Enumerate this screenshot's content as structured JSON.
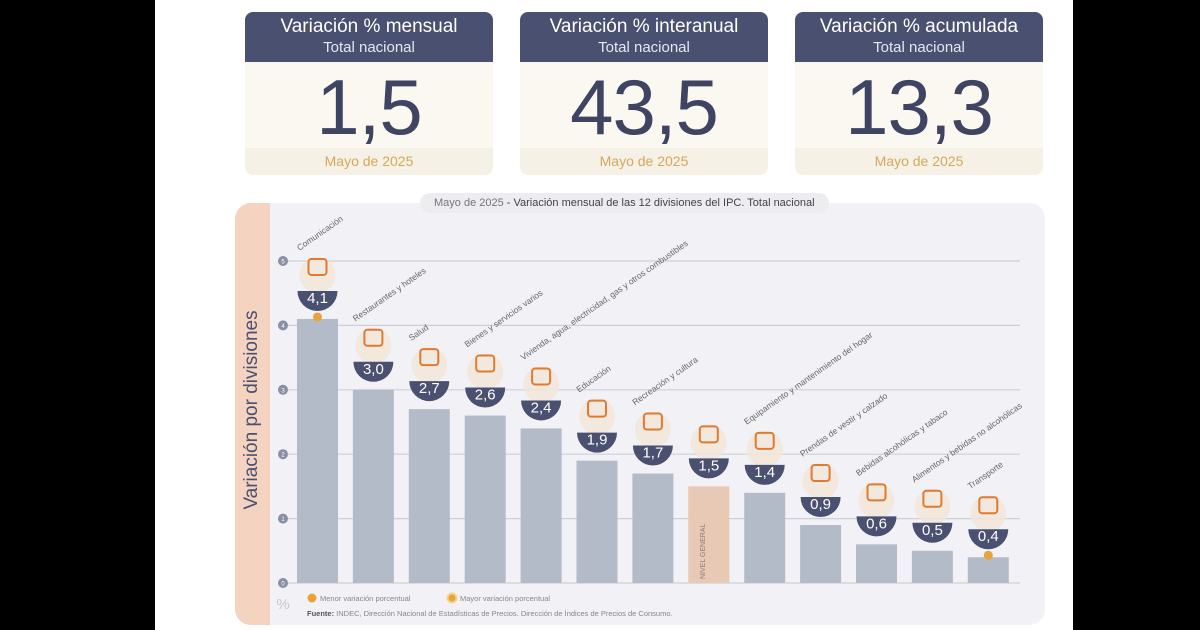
{
  "cards": [
    {
      "title": "Variación % mensual",
      "subtitle": "Total nacional",
      "value": "1,5",
      "period": "Mayo de 2025"
    },
    {
      "title": "Variación % interanual",
      "subtitle": "Total nacional",
      "value": "43,5",
      "period": "Mayo de 2025"
    },
    {
      "title": "Variación % acumulada",
      "subtitle": "Total nacional",
      "value": "13,3",
      "period": "Mayo de 2025"
    }
  ],
  "colors": {
    "navy": "#4a5070",
    "bar": "#b3bbc8",
    "general": "#e8c9b5",
    "accent": "#e8a33a",
    "orange": "#e07a2e"
  },
  "chart_data": {
    "type": "bar",
    "title_period": "Mayo de 2025",
    "title": " - Variación mensual de las 12 divisiones del IPC. Total nacional",
    "ylabel": "Variación por divisiones",
    "unit": "%",
    "ylim": [
      0,
      5
    ],
    "yticks": [
      "0",
      "1",
      "2",
      "3",
      "4",
      "5"
    ],
    "categories": [
      "Comunicación",
      "Restaurantes y hoteles",
      "Salud",
      "Bienes y servicios varios",
      "Vivienda, agua, electricidad, gas y otros combustibles",
      "Educación",
      "Recreación y cultura",
      "NIVEL GENERAL",
      "Equipamiento y mantenimiento del hogar",
      "Prendas de vestir y calzado",
      "Bebidas alcohólicas y tabaco",
      "Alimentos y bebidas no alcohólicas",
      "Transporte"
    ],
    "values": [
      4.1,
      3.0,
      2.7,
      2.6,
      2.4,
      1.9,
      1.7,
      1.5,
      1.4,
      0.9,
      0.6,
      0.5,
      0.4
    ],
    "value_labels": [
      "4,1",
      "3,0",
      "2,7",
      "2,6",
      "2,4",
      "1,9",
      "1,7",
      "1,5",
      "1,4",
      "0,9",
      "0,6",
      "0,5",
      "0,4"
    ],
    "legend": [
      "Menor variación porcentual",
      "Mayor variación porcentual"
    ],
    "source_label": "Fuente:",
    "source": " INDEC, Dirección Nacional de Estadísticas de Precios. Dirección de Índices de Precios de Consumo."
  }
}
